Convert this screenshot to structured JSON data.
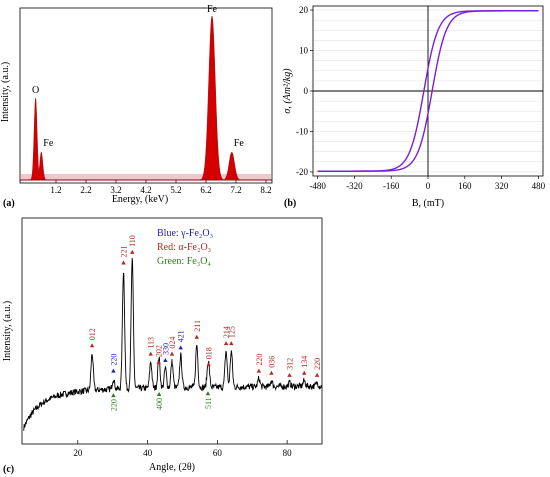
{
  "figure_labels": {
    "a": "(a)",
    "b": "(b)",
    "c": "(c)"
  },
  "chart_data": [
    {
      "id": "a",
      "type": "area",
      "title": "",
      "xlabel": "Energy, (keV)",
      "ylabel": "Intensity, (a.u.)",
      "xlim": [
        0,
        8.4
      ],
      "ylim": [
        0,
        1
      ],
      "xticks": [
        1.2,
        2.2,
        3.2,
        4.2,
        5.2,
        6.2,
        7.2,
        8.2
      ],
      "fill_color": "#d40000",
      "peaks": [
        {
          "label": "O",
          "x": 0.52,
          "y": 0.5
        },
        {
          "label": "Fe",
          "x": 0.71,
          "y": 0.17
        },
        {
          "label": "Fe",
          "x": 6.4,
          "y": 1.0
        },
        {
          "label": "Fe",
          "x": 7.06,
          "y": 0.17
        }
      ]
    },
    {
      "id": "b",
      "type": "line",
      "title": "",
      "xlabel": "B, (mT)",
      "ylabel": "σ, (Am²/kg)",
      "xlim": [
        -500,
        500
      ],
      "ylim": [
        -21,
        21
      ],
      "xticks": [
        -480,
        -320,
        -160,
        0,
        160,
        320,
        480
      ],
      "yticks": [
        -20,
        -10,
        0,
        10,
        20
      ],
      "line_color": "#7a1fd6",
      "loop": {
        "Ms": 19.8,
        "coercivity": 18,
        "field_scale": 62
      }
    },
    {
      "id": "c",
      "type": "line",
      "title": "",
      "xlabel": "Angle, (2θ)",
      "ylabel": "Intensity, (a.u.)",
      "xlim": [
        4,
        90
      ],
      "ylim": [
        0,
        1
      ],
      "xticks": [
        20,
        40,
        60,
        80
      ],
      "legend": {
        "position": "top-center",
        "items": [
          {
            "text": "Blue: γ-Fe₂O₃",
            "color": "#1f1fb4"
          },
          {
            "text": "Red: α-Fe₂O₃",
            "color": "#b4281e"
          },
          {
            "text": "Green: Fe₃O₄",
            "color": "#2e7d1e"
          }
        ]
      },
      "peaks": [
        {
          "x": 24.1,
          "y": 0.4,
          "label": "012",
          "phase": "red",
          "side": "above"
        },
        {
          "x": 30.2,
          "y": 0.28,
          "label": "220",
          "phase": "blue",
          "side": "above"
        },
        {
          "x": 30.2,
          "y": 0.28,
          "label": "220",
          "phase": "green",
          "side": "below"
        },
        {
          "x": 33.1,
          "y": 0.79,
          "label": "221",
          "phase": "red",
          "side": "above"
        },
        {
          "x": 35.6,
          "y": 0.84,
          "label": "110",
          "phase": "red",
          "side": "above"
        },
        {
          "x": 40.9,
          "y": 0.36,
          "label": "113",
          "phase": "red",
          "side": "above"
        },
        {
          "x": 43.2,
          "y": 0.32,
          "label": "202",
          "phase": "red",
          "side": "above"
        },
        {
          "x": 43.3,
          "y": 0.3,
          "label": "400",
          "phase": "green",
          "side": "below"
        },
        {
          "x": 45.1,
          "y": 0.33,
          "label": "330",
          "phase": "blue",
          "side": "above"
        },
        {
          "x": 47.0,
          "y": 0.36,
          "label": "024",
          "phase": "red",
          "side": "above"
        },
        {
          "x": 49.5,
          "y": 0.39,
          "label": "421",
          "phase": "blue",
          "side": "above"
        },
        {
          "x": 54.1,
          "y": 0.44,
          "label": "211",
          "phase": "red",
          "side": "above"
        },
        {
          "x": 57.5,
          "y": 0.31,
          "label": "018",
          "phase": "red",
          "side": "above"
        },
        {
          "x": 57.3,
          "y": 0.3,
          "label": "511",
          "phase": "green",
          "side": "below"
        },
        {
          "x": 62.5,
          "y": 0.41,
          "label": "214",
          "phase": "red",
          "side": "above"
        },
        {
          "x": 64.0,
          "y": 0.41,
          "label": "125",
          "phase": "red",
          "side": "above"
        },
        {
          "x": 71.9,
          "y": 0.28,
          "label": "220",
          "phase": "red",
          "side": "above"
        },
        {
          "x": 75.5,
          "y": 0.27,
          "label": "036",
          "phase": "red",
          "side": "above"
        },
        {
          "x": 80.7,
          "y": 0.26,
          "label": "312",
          "phase": "red",
          "side": "above"
        },
        {
          "x": 84.9,
          "y": 0.27,
          "label": "134",
          "phase": "red",
          "side": "above"
        },
        {
          "x": 88.6,
          "y": 0.26,
          "label": "220",
          "phase": "red",
          "side": "above"
        }
      ]
    }
  ]
}
